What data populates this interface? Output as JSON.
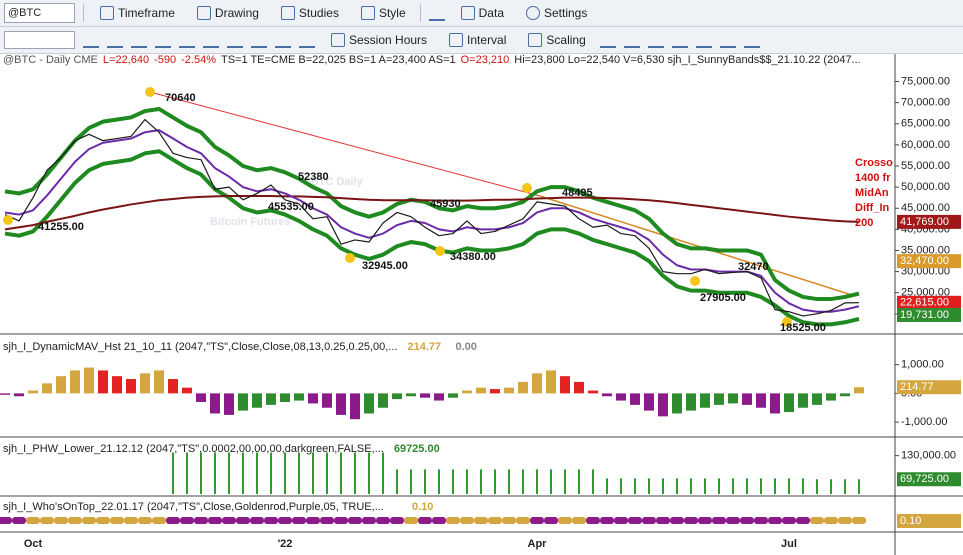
{
  "toolbar": {
    "symbol": "@BTC",
    "menus": [
      "Timeframe",
      "Drawing",
      "Studies",
      "Style",
      "Data",
      "Settings"
    ],
    "tools": [
      "Session Hours",
      "Interval",
      "Scaling"
    ]
  },
  "status_line": [
    {
      "text": "@BTC - Daily  CME",
      "color": "#555555"
    },
    {
      "text": "L=22,640",
      "color": "#d01010"
    },
    {
      "text": "-590",
      "color": "#d01010"
    },
    {
      "text": "-2.54%",
      "color": "#d01010"
    },
    {
      "text": "TS=1  TE=CME  B=22,025  BS=1  A=23,400  AS=1",
      "color": "#222222"
    },
    {
      "text": "O=23,210",
      "color": "#d01010"
    },
    {
      "text": "Hi=23,800  Lo=22,540  V=6,530   sjh_I_SunnyBands$$_21.10.22 (2047...",
      "color": "#222222"
    }
  ],
  "chart_data": [
    {
      "type": "line",
      "watermark": [
        "@BTC Daily",
        "Bitcoin Futures"
      ],
      "categories": [
        null,
        null,
        "Oct",
        null,
        null,
        null,
        null,
        null,
        null,
        null,
        null,
        null,
        null,
        null,
        null,
        null,
        null,
        null,
        null,
        null,
        "'22",
        null,
        null,
        null,
        null,
        null,
        null,
        null,
        null,
        null,
        null,
        null,
        null,
        null,
        null,
        null,
        null,
        null,
        "Apr",
        null,
        null,
        null,
        null,
        null,
        null,
        null,
        null,
        null,
        null,
        null,
        null,
        null,
        null,
        null,
        null,
        null,
        "Jul",
        null,
        null,
        null,
        null,
        null
      ],
      "ylim": [
        15700,
        78200
      ],
      "yticks": [
        {
          "value": 20000,
          "label": "20,000.00"
        },
        {
          "value": 25000,
          "label": "25,000.00"
        },
        {
          "value": 30000,
          "label": "30,000.00"
        },
        {
          "value": 35000,
          "label": "35,000.00"
        },
        {
          "value": 40000,
          "label": "40,000.00"
        },
        {
          "value": 45000,
          "label": "45,000.00"
        },
        {
          "value": 50000,
          "label": "50,000.00"
        },
        {
          "value": 55000,
          "label": "55,000.00"
        },
        {
          "value": 60000,
          "label": "60,000.00"
        },
        {
          "value": 65000,
          "label": "65,000.00"
        },
        {
          "value": 70000,
          "label": "70,000.00"
        },
        {
          "value": 75000,
          "label": "75,000.00"
        }
      ],
      "series": [
        {
          "name": "Upper Band",
          "color": "#1f8a1f",
          "width": 4,
          "values": [
            49000,
            48500,
            49500,
            53000,
            57000,
            61000,
            64000,
            65500,
            66000,
            66500,
            68000,
            68500,
            66500,
            64500,
            63000,
            59500,
            57500,
            55000,
            54000,
            54500,
            53500,
            52000,
            50000,
            48500,
            45500,
            44000,
            43000,
            44000,
            46000,
            47000,
            46500,
            45000,
            44500,
            45500,
            45000,
            45000,
            45500,
            46500,
            49000,
            50000,
            50000,
            49000,
            47500,
            46500,
            45500,
            44500,
            42500,
            39000,
            36500,
            35500,
            35500,
            35000,
            35000,
            35000,
            34000,
            28000,
            25500,
            24000,
            23500,
            23500,
            24000,
            24800
          ]
        },
        {
          "name": "Lower Band",
          "color": "#1f8a1f",
          "width": 4,
          "values": [
            39000,
            38500,
            39500,
            43000,
            47000,
            51000,
            54000,
            55500,
            56000,
            56500,
            58000,
            58500,
            56500,
            54500,
            53000,
            49500,
            47500,
            45000,
            44000,
            44500,
            43500,
            42000,
            40000,
            38500,
            35500,
            34000,
            33000,
            34000,
            36000,
            37000,
            36500,
            35000,
            34500,
            35500,
            35000,
            35000,
            35500,
            36500,
            39000,
            40000,
            40000,
            39000,
            37500,
            36500,
            35500,
            34500,
            32500,
            29000,
            26500,
            25500,
            25500,
            25000,
            25000,
            25000,
            24000,
            22000,
            19500,
            18000,
            17500,
            17500,
            18000,
            18800
          ]
        },
        {
          "name": "Long MA",
          "color": "#7a1414",
          "width": 2,
          "values": [
            40000,
            40500,
            41000,
            41800,
            42500,
            43200,
            44000,
            44700,
            45300,
            45900,
            46400,
            46900,
            47200,
            47500,
            47700,
            47800,
            47900,
            47900,
            47900,
            47900,
            47800,
            47800,
            47700,
            47600,
            47400,
            47200,
            47000,
            46900,
            46900,
            46900,
            46900,
            46800,
            46800,
            46800,
            46900,
            47000,
            47000,
            47100,
            47300,
            47400,
            47500,
            47500,
            47500,
            47400,
            47300,
            47100,
            46900,
            46600,
            46200,
            45800,
            45400,
            45000,
            44600,
            44200,
            43800,
            43400,
            43000,
            42700,
            42400,
            42100,
            41900,
            41769
          ]
        },
        {
          "name": "Mid",
          "color": "#6b2aa8",
          "width": 2,
          "values": [
            44000,
            43500,
            44500,
            48000,
            52000,
            56000,
            59000,
            60500,
            61000,
            61500,
            63000,
            63500,
            61500,
            59500,
            58000,
            54500,
            52500,
            50000,
            49000,
            49500,
            48500,
            47000,
            45000,
            43500,
            40500,
            39000,
            38000,
            39000,
            41000,
            42000,
            41500,
            40000,
            39500,
            40500,
            40000,
            40000,
            40500,
            41500,
            44000,
            45000,
            45000,
            44000,
            42500,
            41500,
            40500,
            39500,
            37500,
            34000,
            31500,
            30500,
            30500,
            30000,
            30000,
            30000,
            29000,
            25000,
            22500,
            21000,
            20500,
            20500,
            21000,
            21800
          ]
        },
        {
          "name": "Close",
          "color": "#1a1a1a",
          "width": 1.2,
          "values": [
            43500,
            42000,
            47500,
            54000,
            57000,
            61000,
            62500,
            61000,
            61500,
            62000,
            66000,
            63000,
            58000,
            57000,
            56500,
            49500,
            50000,
            47000,
            48500,
            50500,
            47000,
            46000,
            42500,
            43000,
            36500,
            37500,
            37000,
            41500,
            44000,
            43000,
            40500,
            38500,
            39000,
            42000,
            39000,
            39500,
            41000,
            42500,
            46500,
            46000,
            45500,
            42500,
            40500,
            41000,
            39000,
            38500,
            35500,
            30000,
            29500,
            29500,
            30500,
            29500,
            29800,
            30000,
            28500,
            21000,
            20500,
            19500,
            20000,
            20800,
            22600,
            22640
          ]
        }
      ],
      "annotations": [
        70640,
        52380,
        {
          "value": 45535,
          "label": "45535.00"
        },
        {
          "value": 41255,
          "label": "41255.00"
        },
        {
          "value": 32945,
          "label": "32945.00"
        },
        45930,
        {
          "value": 34380,
          "label": "34380.00"
        },
        48495,
        32470,
        {
          "value": 27905,
          "label": "27905.00"
        },
        {
          "value": 18525,
          "label": "18525.00"
        }
      ],
      "side_notes": [
        "Crosso",
        "1400 fr",
        "MidAn",
        "Diff_In",
        "200"
      ],
      "badges": [
        {
          "value": 41769,
          "label": "41,769.00",
          "color": "#a01818"
        },
        {
          "value": 32470,
          "label": "32,470.00",
          "color": "#d99a2b"
        },
        {
          "value": 22615,
          "label": "22,615.00",
          "color": "#e02020"
        },
        {
          "value": 19731,
          "label": "19,731.00",
          "color": "#2e8b2e"
        }
      ]
    },
    {
      "type": "bar",
      "title": "sjh_I_DynamicMAV_Hst 21_10_11 (2047,\"TS\",Close,Close,08,13,0.25,0.25,00,...",
      "readouts": [
        "214.77",
        "0.00"
      ],
      "ylim": [
        -1450,
        1930
      ],
      "yticks": [
        {
          "value": -1000,
          "label": "-1,000.00"
        },
        {
          "value": 0,
          "label": "0.00"
        },
        {
          "value": 1000,
          "label": "1,000.00"
        }
      ],
      "colors": {
        "up_rising": "#d4a640",
        "up_falling": "#e32222",
        "down_falling": "#8b1a8b",
        "down_rising": "#2e8b2e"
      },
      "values": [
        -50,
        -100,
        100,
        350,
        600,
        800,
        900,
        800,
        600,
        500,
        700,
        800,
        500,
        200,
        -300,
        -700,
        -750,
        -600,
        -500,
        -400,
        -300,
        -250,
        -350,
        -500,
        -750,
        -900,
        -700,
        -500,
        -200,
        -100,
        -150,
        -250,
        -150,
        100,
        200,
        150,
        200,
        400,
        700,
        800,
        600,
        400,
        100,
        -100,
        -250,
        -400,
        -600,
        -800,
        -700,
        -600,
        -500,
        -400,
        -350,
        -400,
        -500,
        -700,
        -650,
        -500,
        -400,
        -250,
        -100,
        214.77
      ],
      "badge": {
        "value": 214.77,
        "label": "214.77",
        "color": "#d4a640"
      }
    },
    {
      "type": "bar",
      "title": "sjh_I_PHW_Lower_21.12.12 (2047,\"TS\",0.0002,00,00,00,darkgreen,FALSE,...",
      "readouts": [
        "69725.00"
      ],
      "ylim": [
        32000,
        170000
      ],
      "yticks": [
        {
          "value": 130000,
          "label": "130,000.00"
        }
      ],
      "color": "#2e9a2e",
      "values": [
        null,
        null,
        null,
        null,
        null,
        null,
        null,
        null,
        null,
        null,
        null,
        null,
        138000,
        138000,
        138000,
        138000,
        138000,
        138000,
        138000,
        138000,
        138000,
        138000,
        138000,
        138000,
        138000,
        138000,
        138000,
        138000,
        95000,
        95000,
        95000,
        95000,
        95000,
        95000,
        95000,
        95000,
        95000,
        95000,
        95000,
        95000,
        95000,
        95000,
        95000,
        72000,
        72000,
        72000,
        72000,
        72000,
        72000,
        72000,
        72000,
        72000,
        72000,
        72000,
        72000,
        72000,
        72000,
        72000,
        69725,
        69725,
        69725,
        69725
      ],
      "badge": {
        "value": 69725,
        "label": "69,725.00",
        "color": "#2e8b2e"
      }
    },
    {
      "type": "ribbon",
      "title": "sjh_I_Who'sOnTop_22.01.17 (2047,\"TS\",Close,Goldenrod,Purple,05, TRUE,...",
      "readouts": [
        "0.10"
      ],
      "colors": [
        "#8b1a8b",
        "#8b1a8b",
        "#d4a640",
        "#d4a640",
        "#d4a640",
        "#d4a640",
        "#d4a640",
        "#d4a640",
        "#d4a640",
        "#d4a640",
        "#d4a640",
        "#d4a640",
        "#8b1a8b",
        "#8b1a8b",
        "#8b1a8b",
        "#8b1a8b",
        "#8b1a8b",
        "#8b1a8b",
        "#8b1a8b",
        "#8b1a8b",
        "#8b1a8b",
        "#8b1a8b",
        "#8b1a8b",
        "#8b1a8b",
        "#8b1a8b",
        "#8b1a8b",
        "#8b1a8b",
        "#8b1a8b",
        "#8b1a8b",
        "#d4a640",
        "#8b1a8b",
        "#8b1a8b",
        "#d4a640",
        "#d4a640",
        "#d4a640",
        "#d4a640",
        "#d4a640",
        "#d4a640",
        "#8b1a8b",
        "#8b1a8b",
        "#d4a640",
        "#d4a640",
        "#8b1a8b",
        "#8b1a8b",
        "#8b1a8b",
        "#8b1a8b",
        "#8b1a8b",
        "#8b1a8b",
        "#8b1a8b",
        "#8b1a8b",
        "#8b1a8b",
        "#8b1a8b",
        "#8b1a8b",
        "#8b1a8b",
        "#8b1a8b",
        "#8b1a8b",
        "#8b1a8b",
        "#8b1a8b",
        "#d4a640",
        "#d4a640",
        "#d4a640",
        "#d4a640"
      ],
      "badge": {
        "value": 0.1,
        "label": "0.10",
        "color": "#d4a640"
      }
    }
  ]
}
